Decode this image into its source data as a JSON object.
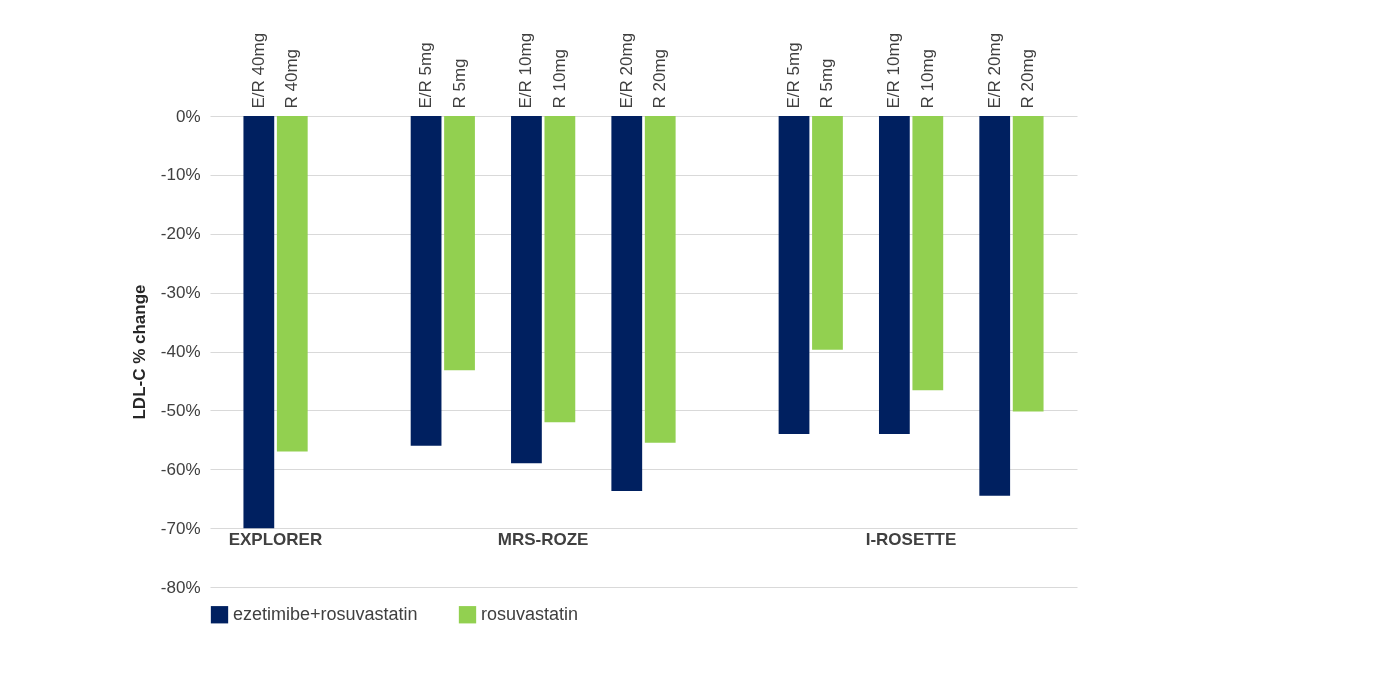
{
  "chart_data": {
    "type": "bar",
    "ylabel": "LDL-C % change",
    "categories": [
      "E/R 40mg",
      "R 40mg",
      null,
      null,
      null,
      "E/R 5mg",
      "R 5mg",
      null,
      "E/R 10mg",
      "R 10mg",
      null,
      "E/R 20mg",
      "R 20mg",
      null,
      null,
      null,
      "E/R 5mg",
      "R 5mg",
      null,
      "E/R 10mg",
      "R 10mg",
      null,
      "E/R 20mg",
      "R 20mg"
    ],
    "series": [
      {
        "name": "ezetimibe+rosuvastatin",
        "color": "#002060",
        "values": [
          -70,
          null,
          null,
          null,
          null,
          -56,
          null,
          null,
          -59,
          null,
          null,
          -63.7,
          null,
          null,
          null,
          null,
          -54,
          null,
          null,
          -54,
          null,
          null,
          -64.5,
          null
        ]
      },
      {
        "name": "rosuvastatin",
        "color": "#92d050",
        "values": [
          null,
          -57,
          null,
          null,
          null,
          null,
          -43.2,
          null,
          null,
          -52,
          null,
          null,
          -55.5,
          null,
          null,
          null,
          null,
          -39.7,
          null,
          null,
          -46.6,
          null,
          null,
          -50.2
        ]
      }
    ],
    "annotations": [
      "EXPLORER",
      "MRS-ROZE",
      "I-ROSETTE"
    ],
    "ylim": [
      -80,
      0
    ],
    "yticks": [
      {
        "value": 0,
        "label": "0%"
      },
      {
        "value": -10,
        "label": "-10%"
      },
      {
        "value": -20,
        "label": "-20%"
      },
      {
        "value": -30,
        "label": "-30%"
      },
      {
        "value": -40,
        "label": "-40%"
      },
      {
        "value": -50,
        "label": "-50%"
      },
      {
        "value": -60,
        "label": "-60%"
      },
      {
        "value": -70,
        "label": "-70%"
      },
      {
        "value": -80,
        "label": "-80%"
      }
    ],
    "grid": "y",
    "legend": "bottom"
  }
}
